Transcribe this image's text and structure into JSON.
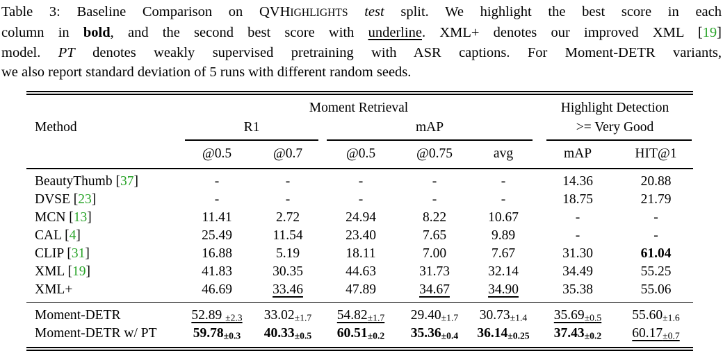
{
  "colors": {
    "citation_green": "#27a327",
    "text": "#000000",
    "background": "#ffffff"
  },
  "caption": {
    "lines": [
      {
        "segments": [
          {
            "text": "Table 3: Baseline Comparison on "
          },
          {
            "text": "QVH"
          },
          {
            "text": "IGHLIGHTS",
            "style": "sc"
          },
          {
            "text": " "
          },
          {
            "text": "test",
            "style": "it"
          },
          {
            "text": " split. We highlight the best score in each"
          }
        ]
      },
      {
        "segments": [
          {
            "text": "column in "
          },
          {
            "text": "bold",
            "style": "b"
          },
          {
            "text": ", and the second best score with "
          },
          {
            "text": "underline",
            "style": "u"
          },
          {
            "text": ". XML+ denotes our improved XML ["
          },
          {
            "text": "19",
            "style": "cite"
          },
          {
            "text": "]"
          }
        ]
      },
      {
        "segments": [
          {
            "text": "model. "
          },
          {
            "text": "PT",
            "style": "it"
          },
          {
            "text": " denotes weakly supervised pretraining with ASR captions. For Moment-DETR variants,"
          }
        ]
      },
      {
        "segments": [
          {
            "text": "we also report standard deviation of 5 runs with different random seeds."
          }
        ]
      }
    ]
  },
  "table": {
    "group_headers": {
      "moment_retrieval": "Moment Retrieval",
      "highlight_detection": "Highlight Detection"
    },
    "sub_headers": {
      "method": "Method",
      "r1": "R1",
      "map": "mAP",
      "very_good": ">= Very Good"
    },
    "columns": [
      "@0.5",
      "@0.7",
      "@0.5",
      "@0.75",
      "avg",
      "mAP",
      "HIT@1"
    ],
    "rows": [
      {
        "method": [
          {
            "text": "BeautyThumb ["
          },
          {
            "text": "37",
            "style": "cite"
          },
          {
            "text": "]"
          }
        ],
        "cells": [
          {
            "t": "-"
          },
          {
            "t": "-"
          },
          {
            "t": "-"
          },
          {
            "t": "-"
          },
          {
            "t": "-"
          },
          {
            "t": "14.36"
          },
          {
            "t": "20.88"
          }
        ]
      },
      {
        "method": [
          {
            "text": "DVSE ["
          },
          {
            "text": "23",
            "style": "cite"
          },
          {
            "text": "]"
          }
        ],
        "cells": [
          {
            "t": "-"
          },
          {
            "t": "-"
          },
          {
            "t": "-"
          },
          {
            "t": "-"
          },
          {
            "t": "-"
          },
          {
            "t": "18.75"
          },
          {
            "t": "21.79"
          }
        ]
      },
      {
        "method": [
          {
            "text": "MCN ["
          },
          {
            "text": "13",
            "style": "cite"
          },
          {
            "text": "]"
          }
        ],
        "cells": [
          {
            "t": "11.41"
          },
          {
            "t": "2.72"
          },
          {
            "t": "24.94"
          },
          {
            "t": "8.22"
          },
          {
            "t": "10.67"
          },
          {
            "t": "-"
          },
          {
            "t": "-"
          }
        ]
      },
      {
        "method": [
          {
            "text": "CAL ["
          },
          {
            "text": "4",
            "style": "cite"
          },
          {
            "text": "]"
          }
        ],
        "cells": [
          {
            "t": "25.49"
          },
          {
            "t": "11.54"
          },
          {
            "t": "23.40"
          },
          {
            "t": "7.65"
          },
          {
            "t": "9.89"
          },
          {
            "t": "-"
          },
          {
            "t": "-"
          }
        ]
      },
      {
        "method": [
          {
            "text": "CLIP ["
          },
          {
            "text": "31",
            "style": "cite"
          },
          {
            "text": "]"
          }
        ],
        "cells": [
          {
            "t": "16.88"
          },
          {
            "t": "5.19"
          },
          {
            "t": "18.11"
          },
          {
            "t": "7.00"
          },
          {
            "t": "7.67"
          },
          {
            "t": "31.30"
          },
          {
            "t": "61.04",
            "b": true
          }
        ]
      },
      {
        "method": [
          {
            "text": "XML ["
          },
          {
            "text": "19",
            "style": "cite"
          },
          {
            "text": "]"
          }
        ],
        "cells": [
          {
            "t": "41.83"
          },
          {
            "t": "30.35"
          },
          {
            "t": "44.63"
          },
          {
            "t": "31.73"
          },
          {
            "t": "32.14"
          },
          {
            "t": "34.49"
          },
          {
            "t": "55.25"
          }
        ]
      },
      {
        "method": [
          {
            "text": "XML+"
          }
        ],
        "cells": [
          {
            "t": "46.69"
          },
          {
            "t": "33.46",
            "u": true
          },
          {
            "t": "47.89"
          },
          {
            "t": "34.67",
            "u": true
          },
          {
            "t": "34.90",
            "u": true
          },
          {
            "t": "35.38"
          },
          {
            "t": "55.06"
          }
        ]
      }
    ],
    "detr_rows": [
      {
        "method": [
          {
            "text": "Moment-DETR"
          }
        ],
        "cells": [
          {
            "t": "52.89",
            "s": "±2.3",
            "u": true,
            "sp": true
          },
          {
            "t": "33.02",
            "s": "±1.7"
          },
          {
            "t": "54.82",
            "s": "±1.7",
            "u": true
          },
          {
            "t": "29.40",
            "s": "±1.7"
          },
          {
            "t": "30.73",
            "s": "±1.4"
          },
          {
            "t": "35.69",
            "s": "±0.5",
            "u": true
          },
          {
            "t": "55.60",
            "s": "±1.6"
          }
        ]
      },
      {
        "method": [
          {
            "text": "Moment-DETR w/ PT"
          }
        ],
        "cells": [
          {
            "t": "59.78",
            "s": "±0.3",
            "b": true
          },
          {
            "t": "40.33",
            "s": "±0.5",
            "b": true
          },
          {
            "t": "60.51",
            "s": "±0.2",
            "b": true
          },
          {
            "t": "35.36",
            "s": "±0.4",
            "b": true
          },
          {
            "t": "36.14",
            "s": "±0.25",
            "b": true
          },
          {
            "t": "37.43",
            "s": "±0.2",
            "b": true
          },
          {
            "t": "60.17",
            "s": "±0.7",
            "u": true
          }
        ]
      }
    ]
  }
}
